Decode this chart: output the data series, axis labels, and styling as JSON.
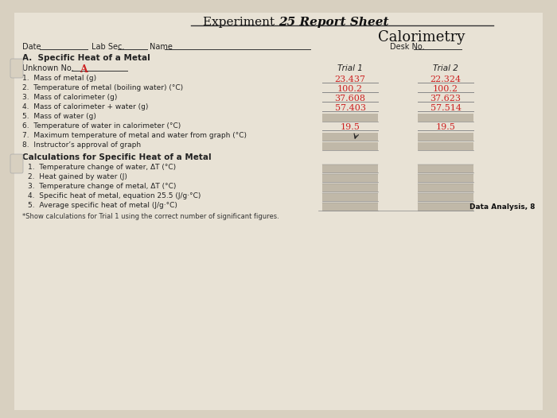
{
  "title_normal": "Experiment ",
  "title_bold": "25 Report Sheet",
  "subtitle": "Calorimetry",
  "bg_color": "#d8d0c0",
  "paper_color": "#e8e2d5",
  "header_line_color": "#555555",
  "red_color": "#cc2222",
  "section_a_title": "A.  Specific Heat of a Metal",
  "unknown_label": "Unknown No.",
  "unknown_value": "A",
  "trial1_label": "Trial 1",
  "trial2_label": "Trial 2",
  "items": [
    "1.  Mass of metal (g)",
    "2.  Temperature of metal (boiling water) (°C)",
    "3.  Mass of calorimeter (g)",
    "4.  Mass of calorimeter + water (g)",
    "5.  Mass of water (g)",
    "6.  Temperature of water in calorimeter (°C)",
    "7.  Maximum temperature of metal and water from graph (°C)",
    "8.  Instructor’s approval of graph"
  ],
  "trial1_values": [
    "23.437",
    "100.2",
    "37.608",
    "57.403",
    "",
    "19.5",
    "",
    ""
  ],
  "trial2_values": [
    "22.324",
    "100.2",
    "37.623",
    "57.514",
    "",
    "19.5",
    "",
    ""
  ],
  "calc_section_title": "Calculations for Specific Heat of a Metal",
  "calc_items": [
    "1.  Temperature change of water, ΔT (°C)",
    "2.  Heat gained by water (J)",
    "3.  Temperature change of metal, ΔT (°C)",
    "4.  Specific heat of metal, equation 25.5 (J/g·°C)",
    "5.  Average specific heat of metal (J/g·°C)"
  ],
  "footnote": "*Show calculations for Trial 1 using the correct number of significant figures.",
  "data_analysis": "Data Analysis, 8",
  "date_label": "Date",
  "labsec_label": "Lab Sec.",
  "name_label": "Name",
  "deskno_label": "Desk No."
}
